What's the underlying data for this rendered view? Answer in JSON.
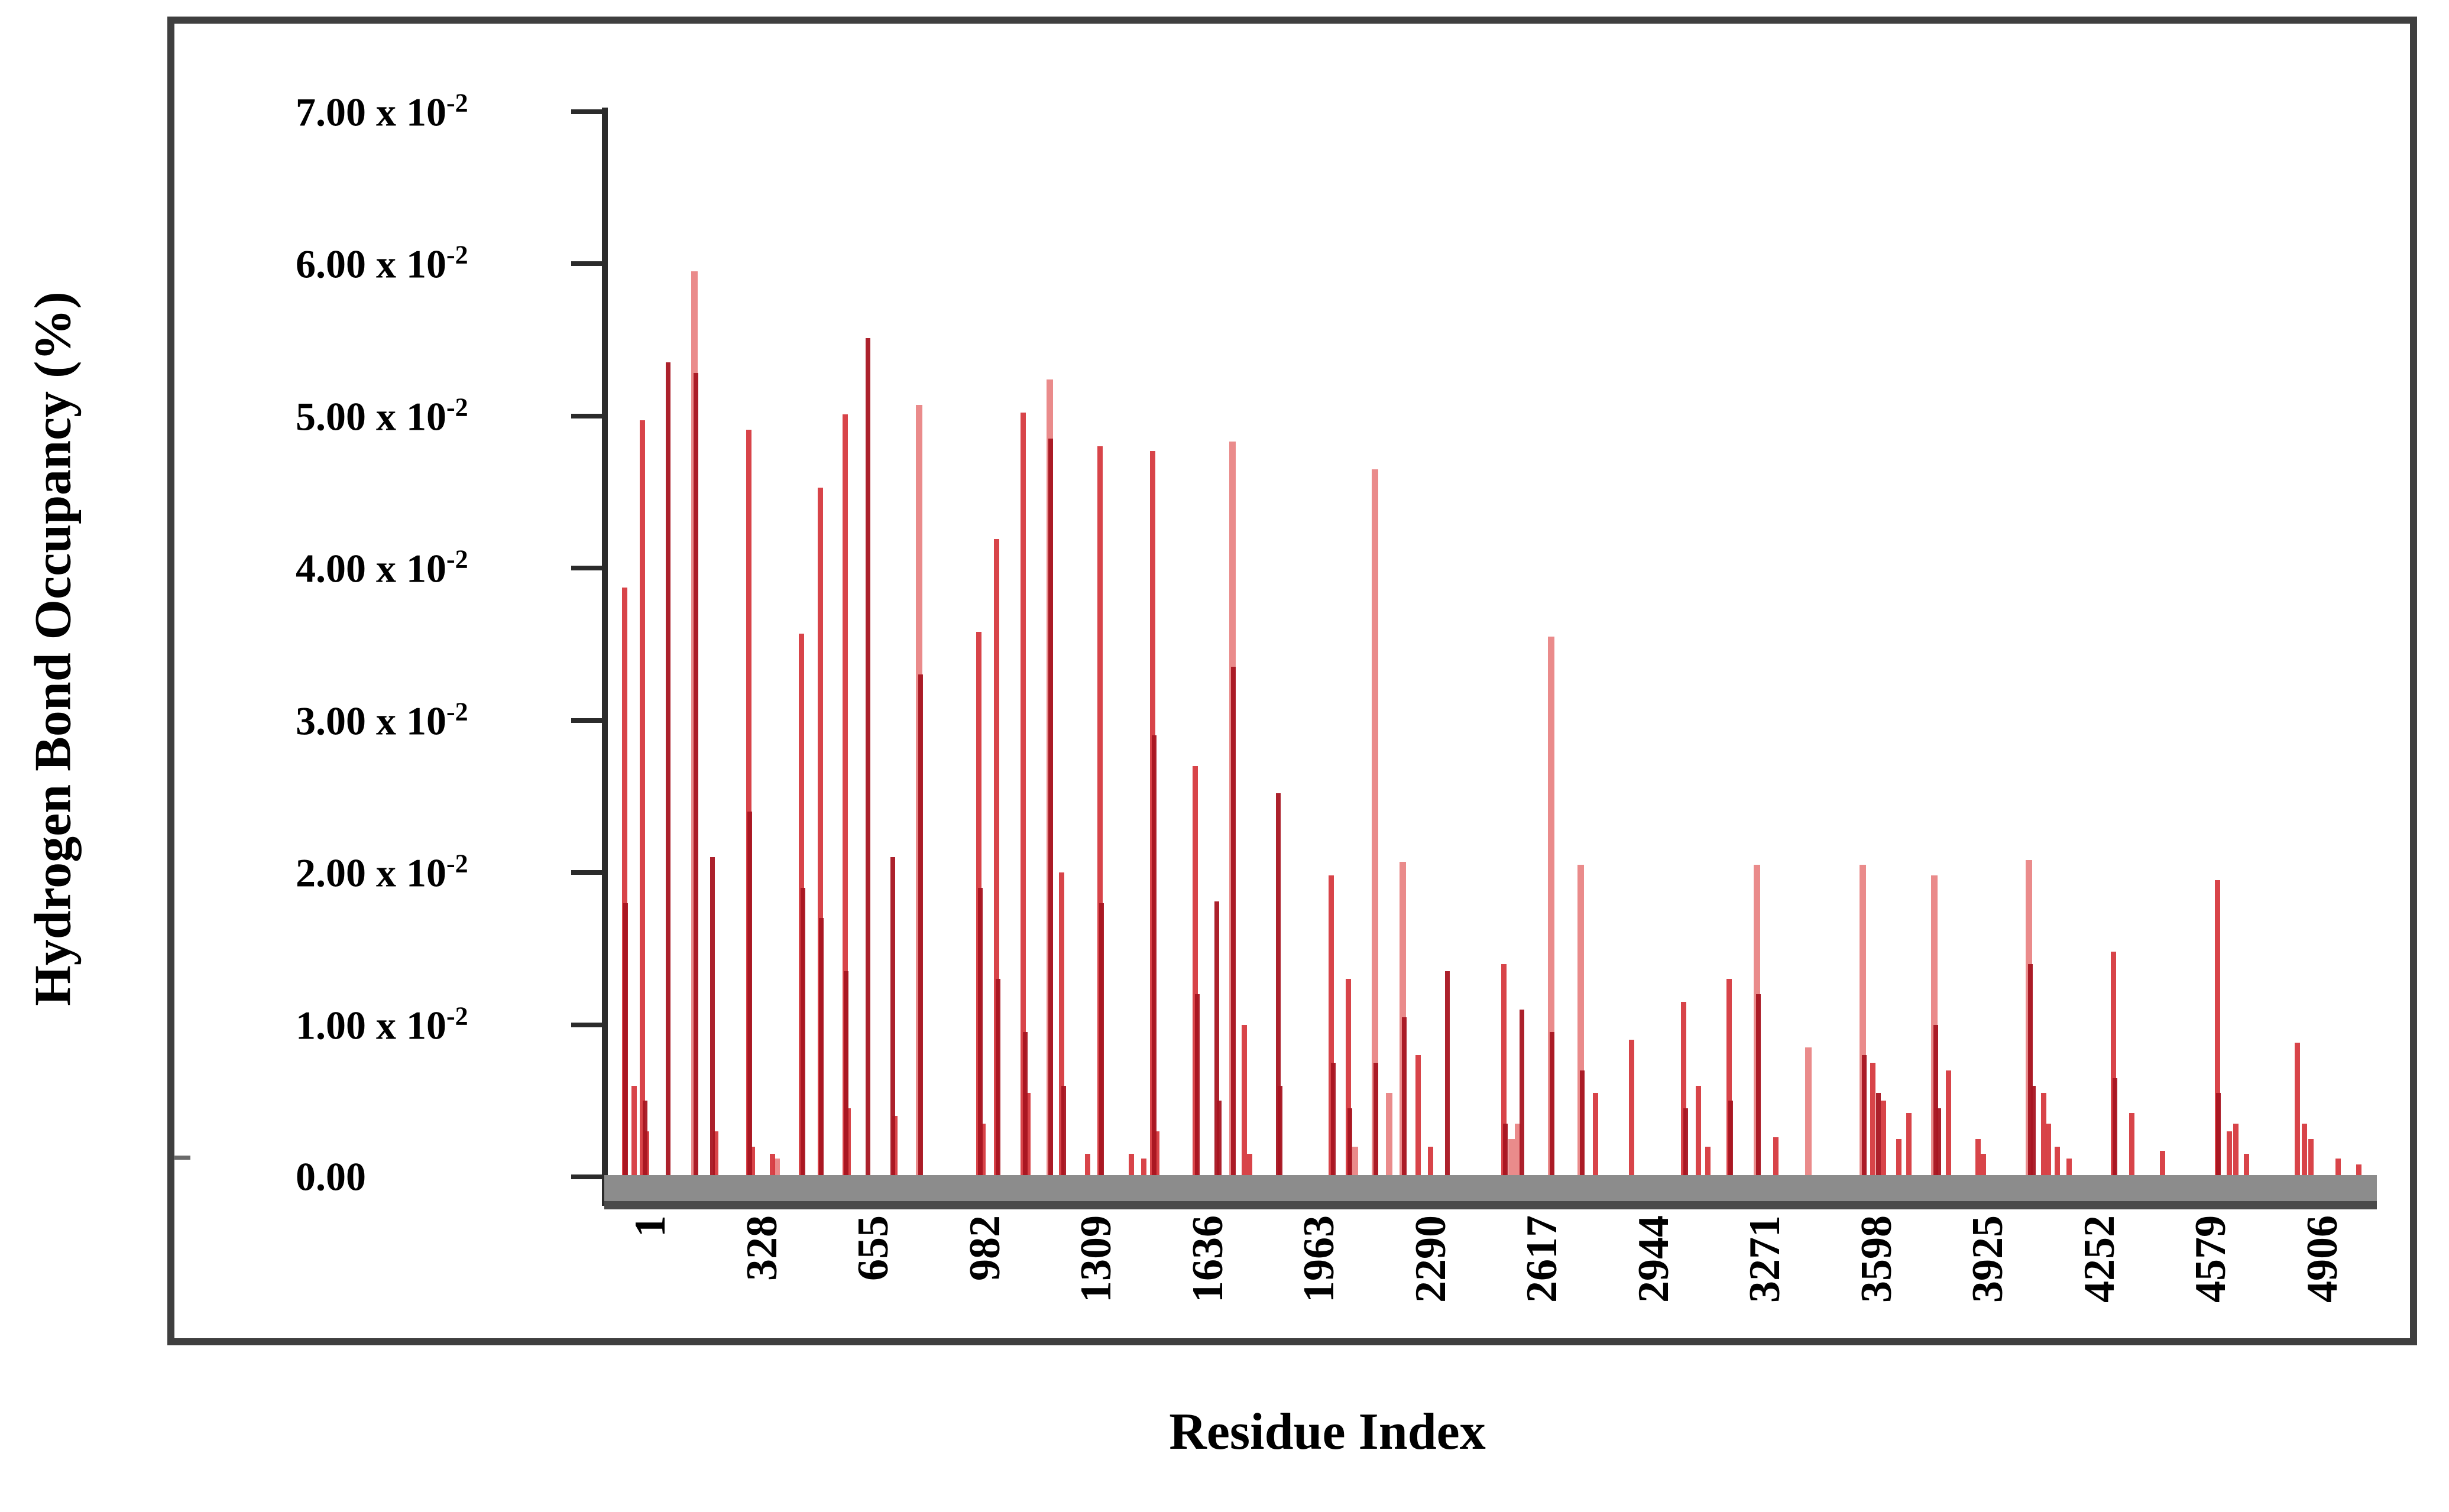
{
  "figure": {
    "y_axis_title": "Hydrogen Bond Occupancy (%)",
    "x_axis_title": "Residue Index"
  },
  "colors": {
    "frame": "#3f3f3f",
    "axis": "#2b2b2b",
    "baseline_band": "#8c8c8c",
    "baseline_band_edge": "#4a4a4a",
    "bar_light": "#e87e7e",
    "bar_mid": "#d63a3f",
    "bar_dark": "#a81521"
  },
  "chart_data": {
    "type": "bar",
    "title": "",
    "xlabel": "Residue Index",
    "ylabel": "Hydrogen Bond Occupancy (%)",
    "xlim": [
      1,
      5330
    ],
    "ylim": [
      0,
      0.07
    ],
    "grid": false,
    "legend": "none",
    "y_ticks": [
      {
        "value": 0.07,
        "text": "7.00 x 10",
        "sup": "-2"
      },
      {
        "value": 0.06,
        "text": "6.00 x 10",
        "sup": "-2"
      },
      {
        "value": 0.05,
        "text": "5.00 x 10",
        "sup": "-2"
      },
      {
        "value": 0.04,
        "text": "4.00 x 10",
        "sup": "-2"
      },
      {
        "value": 0.03,
        "text": "3.00 x 10",
        "sup": "-2"
      },
      {
        "value": 0.02,
        "text": "2.00 x 10",
        "sup": "-2"
      },
      {
        "value": 0.01,
        "text": "1.00 x 10",
        "sup": "-2"
      },
      {
        "value": 0.0,
        "text": "0.00",
        "sup": ""
      }
    ],
    "x_ticks": [
      1,
      328,
      655,
      982,
      1309,
      1636,
      1963,
      2290,
      2617,
      2944,
      3271,
      3598,
      3925,
      4252,
      4579,
      4906
    ],
    "values_unit": "occupancy x 10^-2 (%)",
    "series": [
      {
        "name": "hydrogen-bond-occupancy",
        "points_format": [
          "residue_index",
          "occupancy_e2",
          "shade(0=light,1=mid,2=dark)"
        ],
        "points": [
          [
            62,
            3.87,
            1
          ],
          [
            66,
            1.8,
            2
          ],
          [
            90,
            0.6,
            1
          ],
          [
            115,
            4.97,
            1
          ],
          [
            122,
            0.5,
            2
          ],
          [
            126,
            0.3,
            1
          ],
          [
            190,
            5.35,
            2
          ],
          [
            268,
            5.95,
            0
          ],
          [
            271,
            5.28,
            2
          ],
          [
            320,
            2.1,
            2
          ],
          [
            330,
            0.3,
            1
          ],
          [
            426,
            4.91,
            1
          ],
          [
            430,
            2.4,
            2
          ],
          [
            438,
            0.2,
            1
          ],
          [
            497,
            0.15,
            1
          ],
          [
            509,
            0.12,
            0
          ],
          [
            582,
            3.57,
            1
          ],
          [
            586,
            1.9,
            2
          ],
          [
            636,
            4.53,
            1
          ],
          [
            640,
            1.7,
            2
          ],
          [
            709,
            5.01,
            1
          ],
          [
            713,
            1.35,
            2
          ],
          [
            719,
            0.45,
            1
          ],
          [
            776,
            5.51,
            2
          ],
          [
            849,
            2.1,
            2
          ],
          [
            855,
            0.4,
            1
          ],
          [
            927,
            5.07,
            0
          ],
          [
            930,
            3.3,
            2
          ],
          [
            1102,
            3.58,
            1
          ],
          [
            1106,
            1.9,
            2
          ],
          [
            1113,
            0.35,
            1
          ],
          [
            1154,
            4.19,
            1
          ],
          [
            1158,
            1.3,
            2
          ],
          [
            1232,
            5.02,
            1
          ],
          [
            1237,
            0.95,
            2
          ],
          [
            1246,
            0.55,
            1
          ],
          [
            1310,
            5.24,
            0
          ],
          [
            1313,
            4.85,
            2
          ],
          [
            1345,
            2.0,
            1
          ],
          [
            1350,
            0.6,
            2
          ],
          [
            1420,
            0.15,
            1
          ],
          [
            1458,
            4.8,
            1
          ],
          [
            1462,
            1.8,
            2
          ],
          [
            1550,
            0.15,
            1
          ],
          [
            1585,
            0.12,
            1
          ],
          [
            1612,
            4.77,
            1
          ],
          [
            1616,
            2.9,
            2
          ],
          [
            1624,
            0.3,
            1
          ],
          [
            1737,
            2.7,
            1
          ],
          [
            1742,
            1.2,
            2
          ],
          [
            1800,
            1.81,
            2
          ],
          [
            1806,
            0.5,
            2
          ],
          [
            1845,
            4.83,
            0
          ],
          [
            1848,
            3.35,
            2
          ],
          [
            1880,
            1.0,
            1
          ],
          [
            1896,
            0.15,
            1
          ],
          [
            1980,
            2.52,
            2
          ],
          [
            1985,
            0.6,
            2
          ],
          [
            2136,
            1.98,
            1
          ],
          [
            2141,
            0.75,
            2
          ],
          [
            2185,
            1.3,
            1
          ],
          [
            2190,
            0.45,
            2
          ],
          [
            2205,
            0.2,
            0
          ],
          [
            2263,
            4.65,
            0
          ],
          [
            2267,
            0.75,
            2
          ],
          [
            2305,
            0.55,
            0
          ],
          [
            2345,
            2.07,
            0
          ],
          [
            2349,
            1.05,
            2
          ],
          [
            2390,
            0.8,
            1
          ],
          [
            2427,
            0.2,
            1
          ],
          [
            2477,
            1.35,
            2
          ],
          [
            2642,
            1.4,
            1
          ],
          [
            2647,
            0.35,
            2
          ],
          [
            2665,
            0.25,
            0
          ],
          [
            2683,
            0.35,
            0
          ],
          [
            2695,
            1.1,
            2
          ],
          [
            2780,
            3.55,
            0
          ],
          [
            2784,
            0.95,
            2
          ],
          [
            2867,
            2.05,
            0
          ],
          [
            2871,
            0.7,
            2
          ],
          [
            2910,
            0.55,
            1
          ],
          [
            3016,
            0.9,
            1
          ],
          [
            3170,
            1.15,
            1
          ],
          [
            3176,
            0.45,
            2
          ],
          [
            3212,
            0.6,
            1
          ],
          [
            3240,
            0.2,
            1
          ],
          [
            3302,
            1.3,
            1
          ],
          [
            3307,
            0.5,
            2
          ],
          [
            3385,
            2.05,
            0
          ],
          [
            3389,
            1.2,
            2
          ],
          [
            3440,
            0.26,
            1
          ],
          [
            3535,
            0.85,
            0
          ],
          [
            3695,
            2.05,
            0
          ],
          [
            3699,
            0.8,
            2
          ],
          [
            3725,
            0.75,
            1
          ],
          [
            3740,
            0.55,
            2
          ],
          [
            3755,
            0.5,
            1
          ],
          [
            3800,
            0.25,
            1
          ],
          [
            3830,
            0.42,
            1
          ],
          [
            3905,
            1.98,
            0
          ],
          [
            3909,
            1.0,
            2
          ],
          [
            3918,
            0.45,
            2
          ],
          [
            3946,
            0.7,
            1
          ],
          [
            4033,
            0.25,
            1
          ],
          [
            4048,
            0.15,
            1
          ],
          [
            4182,
            2.08,
            0
          ],
          [
            4186,
            1.4,
            2
          ],
          [
            4196,
            0.6,
            2
          ],
          [
            4225,
            0.55,
            1
          ],
          [
            4240,
            0.35,
            1
          ],
          [
            4265,
            0.2,
            1
          ],
          [
            4300,
            0.12,
            1
          ],
          [
            4430,
            1.48,
            1
          ],
          [
            4434,
            0.65,
            2
          ],
          [
            4484,
            0.42,
            1
          ],
          [
            4574,
            0.17,
            1
          ],
          [
            4735,
            1.95,
            1
          ],
          [
            4739,
            0.55,
            2
          ],
          [
            4770,
            0.3,
            1
          ],
          [
            4790,
            0.35,
            1
          ],
          [
            4820,
            0.15,
            1
          ],
          [
            4970,
            0.88,
            1
          ],
          [
            4990,
            0.35,
            1
          ],
          [
            5010,
            0.25,
            1
          ],
          [
            5090,
            0.12,
            1
          ],
          [
            5150,
            0.08,
            1
          ]
        ]
      }
    ]
  }
}
